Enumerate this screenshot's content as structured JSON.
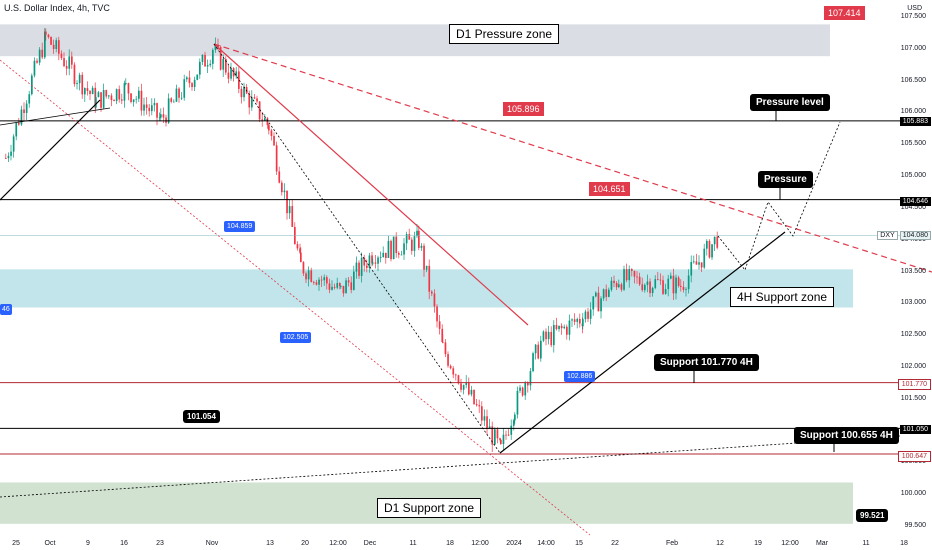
{
  "header": {
    "title": "U.S. Dollar Index, 4h, TVC"
  },
  "axis": {
    "unit": "USD",
    "y_ticks": [
      "107.500",
      "107.000",
      "106.500",
      "106.000",
      "105.500",
      "105.000",
      "104.500",
      "104.000",
      "103.500",
      "103.000",
      "102.500",
      "102.000",
      "101.500",
      "101.000",
      "100.500",
      "100.000",
      "99.500"
    ],
    "y_tick_values": [
      107.5,
      107.0,
      106.5,
      106.0,
      105.5,
      105.0,
      104.5,
      104.0,
      103.5,
      103.0,
      102.5,
      102.0,
      101.5,
      101.0,
      100.5,
      100.0,
      99.5
    ],
    "x_ticks": [
      "25",
      "Oct",
      "9",
      "16",
      "23",
      "Nov",
      "13",
      "20",
      "12:00",
      "Dec",
      "11",
      "18",
      "12:00",
      "2024",
      "14:00",
      "15",
      "22",
      "Feb",
      "12",
      "19",
      "12:00",
      "Mar",
      "11",
      "18"
    ],
    "price_tags": {
      "dxy": "DXY",
      "current": "104.080",
      "level_105883": "105.883",
      "level_104646": "104.646",
      "level_101770": "101.770",
      "level_101050": "101.050",
      "level_100647": "100.647"
    }
  },
  "annotations": {
    "d1_pressure_zone": "D1 Pressure zone",
    "d1_support_zone": "D1 Support zone",
    "h4_support_zone": "4H Support zone",
    "pressure_level": "Pressure level",
    "pressure": "Pressure",
    "support_101770": "Support 101.770 4H",
    "support_100655": "Support 100.655 4H",
    "tag_107414": "107.414",
    "tag_105896": "105.896",
    "tag_104651": "104.651",
    "tag_101054": "101.054",
    "tag_99521": "99.521",
    "low_104859": "104.859",
    "low_102505": "102.505",
    "low_102886": "102.886",
    "left_cut_tag": "46"
  },
  "colors": {
    "candle_up": "#089981",
    "candle_down": "#f23645",
    "pressure_zone": "#d1d4dc",
    "support_zone": "#c5dbc6",
    "h4_zone": "#b2dfe5",
    "red_line": "#e03a4b"
  },
  "chart_data": {
    "type": "candlestick",
    "title": "U.S. Dollar Index, 4h, TVC",
    "ylabel": "USD",
    "ylim": [
      99.3,
      107.8
    ],
    "price_path_waypoints": [
      {
        "label": "25",
        "close": 105.3
      },
      {
        "label": "Oct",
        "close": 107.2
      },
      {
        "label": "9",
        "close": 106.2
      },
      {
        "label": "16",
        "close": 106.4
      },
      {
        "label": "23",
        "close": 105.9
      },
      {
        "label": "Nov",
        "close": 107.0
      },
      {
        "label": "13",
        "close": 105.8
      },
      {
        "label": "20",
        "close": 103.6
      },
      {
        "label": "12:00",
        "close": 103.2
      },
      {
        "label": "Dec",
        "close": 103.8
      },
      {
        "label": "11",
        "close": 104.0
      },
      {
        "label": "18",
        "close": 102.3
      },
      {
        "label": "12:00",
        "close": 100.7
      },
      {
        "label": "2024",
        "close": 101.4
      },
      {
        "label": "14:00",
        "close": 102.4
      },
      {
        "label": "15",
        "close": 102.8
      },
      {
        "label": "22",
        "close": 103.4
      },
      {
        "label": "Feb",
        "close": 103.3
      },
      {
        "label": "12",
        "close": 104.08
      }
    ],
    "horizontal_levels": [
      105.883,
      104.646,
      101.77,
      101.05,
      100.647
    ],
    "zones": [
      {
        "name": "D1 Pressure zone",
        "from": 106.9,
        "to": 107.4
      },
      {
        "name": "4H Support zone",
        "from": 102.95,
        "to": 103.55
      },
      {
        "name": "D1 Support zone",
        "from": 99.55,
        "to": 100.2
      }
    ]
  }
}
